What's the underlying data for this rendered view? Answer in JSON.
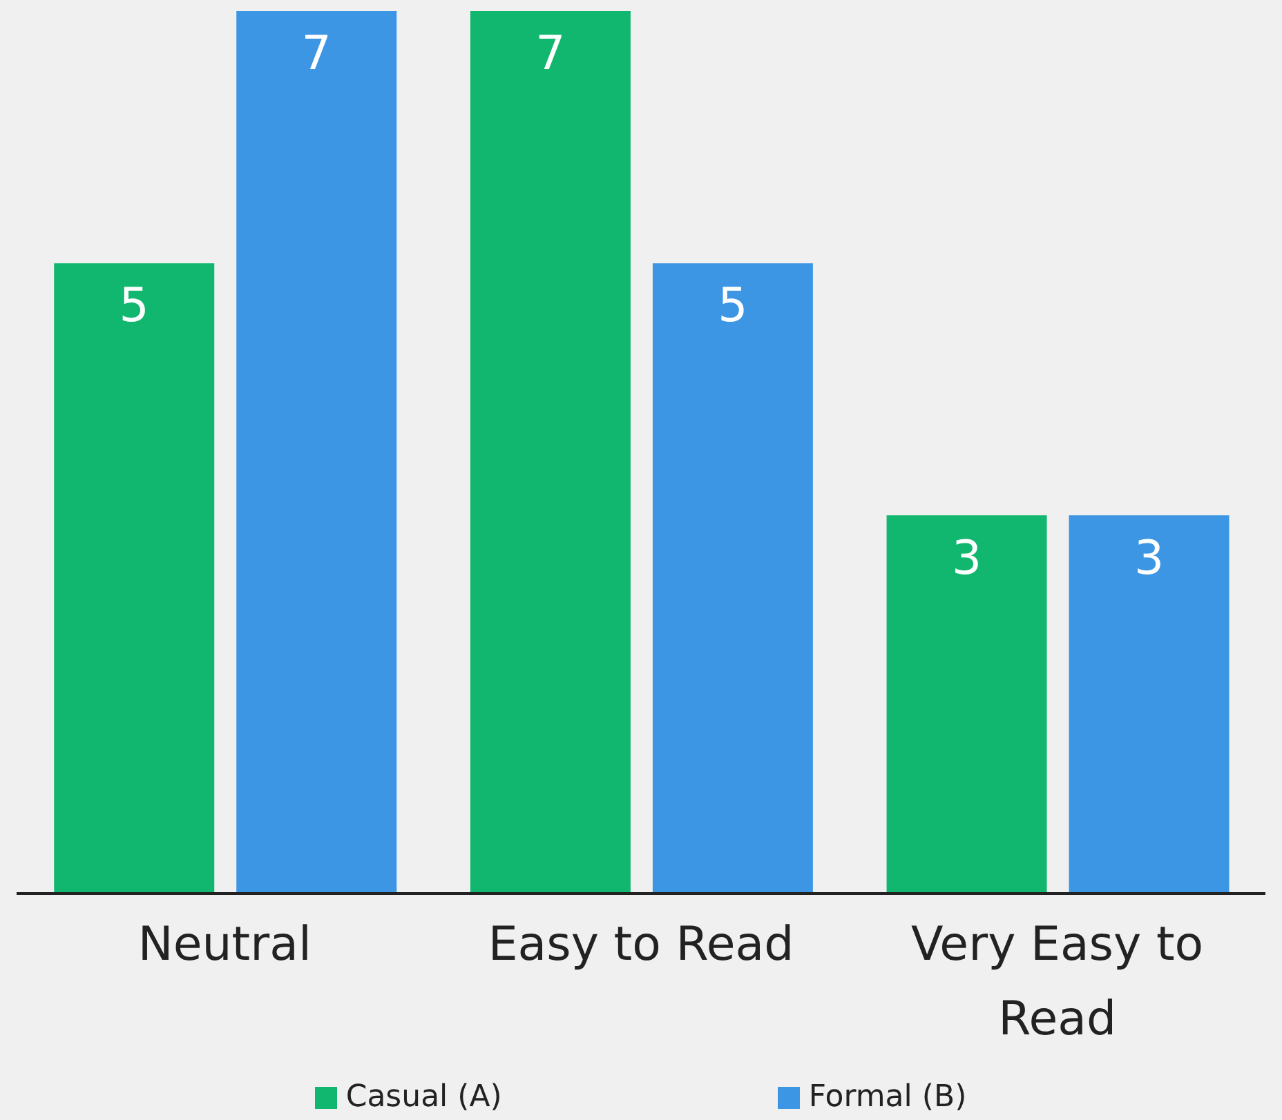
{
  "chart_data": {
    "type": "bar",
    "categories": [
      "Neutral",
      "Easy to Read",
      "Very Easy to Read"
    ],
    "series": [
      {
        "name": "Casual (A)",
        "color": "#12b76f",
        "values": [
          5,
          7,
          3
        ]
      },
      {
        "name": "Formal (B)",
        "color": "#3d96e3",
        "values": [
          7,
          5,
          3
        ]
      }
    ],
    "data_labels": true,
    "legend": "bottom",
    "grid": false
  }
}
